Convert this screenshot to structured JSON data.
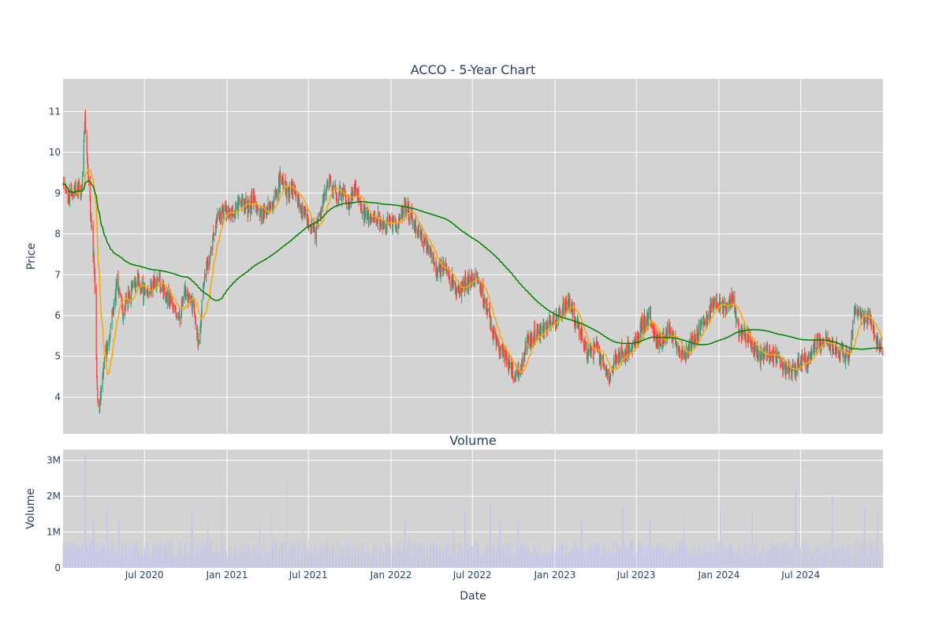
{
  "chart_data": [
    {
      "type": "candlestick",
      "title": "ACCO - 5-Year Chart",
      "ylabel": "Price",
      "xlabel": "",
      "x_range": [
        "2020-01-02",
        "2024-12-31"
      ],
      "ylim": [
        3.1,
        11.8
      ],
      "y_ticks": [
        4,
        5,
        6,
        7,
        8,
        9,
        10,
        11
      ],
      "grid": true,
      "colors": {
        "increasing": "#3d9970",
        "decreasing": "#ff4136",
        "ma_short": "#ffa500",
        "ma_long": "#008000",
        "background": "#d3d3d3"
      },
      "close_anchors": [
        [
          "2020-01-02",
          9.2
        ],
        [
          "2020-01-15",
          8.9
        ],
        [
          "2020-02-01",
          9.1
        ],
        [
          "2020-02-12",
          9.0
        ],
        [
          "2020-02-20",
          10.9
        ],
        [
          "2020-02-25",
          9.7
        ],
        [
          "2020-03-05",
          8.2
        ],
        [
          "2020-03-12",
          7.1
        ],
        [
          "2020-03-18",
          4.1
        ],
        [
          "2020-03-23",
          3.7
        ],
        [
          "2020-04-01",
          4.8
        ],
        [
          "2020-04-15",
          5.6
        ],
        [
          "2020-05-01",
          6.8
        ],
        [
          "2020-05-15",
          6.1
        ],
        [
          "2020-06-01",
          6.6
        ],
        [
          "2020-06-15",
          6.9
        ],
        [
          "2020-07-01",
          6.5
        ],
        [
          "2020-07-15",
          6.7
        ],
        [
          "2020-08-01",
          6.9
        ],
        [
          "2020-08-15",
          6.6
        ],
        [
          "2020-09-01",
          6.3
        ],
        [
          "2020-09-15",
          5.9
        ],
        [
          "2020-10-01",
          6.6
        ],
        [
          "2020-10-20",
          6.2
        ],
        [
          "2020-10-30",
          5.3
        ],
        [
          "2020-11-10",
          6.8
        ],
        [
          "2020-11-25",
          7.6
        ],
        [
          "2020-12-10",
          8.4
        ],
        [
          "2021-01-01",
          8.6
        ],
        [
          "2021-01-15",
          8.5
        ],
        [
          "2021-02-01",
          8.8
        ],
        [
          "2021-02-15",
          8.6
        ],
        [
          "2021-03-01",
          8.9
        ],
        [
          "2021-03-15",
          8.4
        ],
        [
          "2021-04-01",
          8.6
        ],
        [
          "2021-04-15",
          8.8
        ],
        [
          "2021-05-01",
          9.4
        ],
        [
          "2021-05-15",
          9.0
        ],
        [
          "2021-06-01",
          9.1
        ],
        [
          "2021-06-15",
          8.6
        ],
        [
          "2021-07-01",
          8.3
        ],
        [
          "2021-07-15",
          8.0
        ],
        [
          "2021-08-01",
          8.7
        ],
        [
          "2021-08-15",
          9.3
        ],
        [
          "2021-09-01",
          8.9
        ],
        [
          "2021-09-15",
          9.0
        ],
        [
          "2021-10-01",
          8.7
        ],
        [
          "2021-10-15",
          9.2
        ],
        [
          "2021-11-01",
          8.5
        ],
        [
          "2021-11-15",
          8.3
        ],
        [
          "2021-12-01",
          8.4
        ],
        [
          "2021-12-15",
          8.2
        ],
        [
          "2022-01-01",
          8.3
        ],
        [
          "2022-01-15",
          8.1
        ],
        [
          "2022-02-01",
          8.7
        ],
        [
          "2022-02-15",
          8.4
        ],
        [
          "2022-03-01",
          8.1
        ],
        [
          "2022-03-15",
          7.8
        ],
        [
          "2022-04-01",
          7.5
        ],
        [
          "2022-04-15",
          7.1
        ],
        [
          "2022-05-01",
          7.2
        ],
        [
          "2022-05-15",
          6.8
        ],
        [
          "2022-06-01",
          6.6
        ],
        [
          "2022-06-15",
          6.8
        ],
        [
          "2022-07-01",
          7.0
        ],
        [
          "2022-07-15",
          6.8
        ],
        [
          "2022-08-01",
          6.2
        ],
        [
          "2022-08-15",
          5.6
        ],
        [
          "2022-09-01",
          5.1
        ],
        [
          "2022-09-15",
          5.0
        ],
        [
          "2022-10-01",
          4.5
        ],
        [
          "2022-10-15",
          4.7
        ],
        [
          "2022-11-01",
          5.4
        ],
        [
          "2022-11-15",
          5.5
        ],
        [
          "2022-12-01",
          5.6
        ],
        [
          "2022-12-15",
          5.7
        ],
        [
          "2023-01-01",
          5.9
        ],
        [
          "2023-01-15",
          6.1
        ],
        [
          "2023-02-01",
          6.4
        ],
        [
          "2023-02-15",
          5.8
        ],
        [
          "2023-03-01",
          5.5
        ],
        [
          "2023-03-15",
          5.0
        ],
        [
          "2023-04-01",
          5.2
        ],
        [
          "2023-04-15",
          4.9
        ],
        [
          "2023-05-01",
          4.5
        ],
        [
          "2023-05-15",
          5.0
        ],
        [
          "2023-06-01",
          5.1
        ],
        [
          "2023-06-15",
          5.2
        ],
        [
          "2023-07-01",
          5.4
        ],
        [
          "2023-07-15",
          5.8
        ],
        [
          "2023-08-01",
          6.0
        ],
        [
          "2023-08-15",
          5.3
        ],
        [
          "2023-09-01",
          5.4
        ],
        [
          "2023-09-15",
          5.7
        ],
        [
          "2023-10-01",
          5.2
        ],
        [
          "2023-10-15",
          5.0
        ],
        [
          "2023-11-01",
          5.3
        ],
        [
          "2023-11-15",
          5.6
        ],
        [
          "2023-12-01",
          5.9
        ],
        [
          "2023-12-15",
          6.2
        ],
        [
          "2024-01-01",
          6.3
        ],
        [
          "2024-01-15",
          6.2
        ],
        [
          "2024-02-01",
          6.4
        ],
        [
          "2024-02-15",
          5.6
        ],
        [
          "2024-03-01",
          5.5
        ],
        [
          "2024-03-15",
          5.3
        ],
        [
          "2024-04-01",
          5.0
        ],
        [
          "2024-04-15",
          5.1
        ],
        [
          "2024-05-01",
          5.0
        ],
        [
          "2024-05-15",
          4.9
        ],
        [
          "2024-06-01",
          4.7
        ],
        [
          "2024-06-15",
          4.6
        ],
        [
          "2024-07-01",
          4.9
        ],
        [
          "2024-07-15",
          4.8
        ],
        [
          "2024-08-01",
          5.3
        ],
        [
          "2024-08-15",
          5.4
        ],
        [
          "2024-09-01",
          5.3
        ],
        [
          "2024-09-15",
          5.2
        ],
        [
          "2024-10-01",
          5.1
        ],
        [
          "2024-10-15",
          5.0
        ],
        [
          "2024-11-01",
          6.2
        ],
        [
          "2024-11-15",
          5.9
        ],
        [
          "2024-12-01",
          6.0
        ],
        [
          "2024-12-15",
          5.4
        ],
        [
          "2024-12-31",
          5.2
        ]
      ],
      "series": [
        {
          "name": "",
          "type": "moving_average",
          "window": 20,
          "color": "#ffa500"
        },
        {
          "name": "",
          "type": "moving_average",
          "window": 200,
          "color": "#008000"
        }
      ]
    },
    {
      "type": "bar",
      "title": "Volume",
      "xlabel": "Date",
      "ylabel": "Volume",
      "ylim": [
        0,
        3300000
      ],
      "y_ticks": [
        {
          "value": 0,
          "label": "0"
        },
        {
          "value": 1000000,
          "label": "1M"
        },
        {
          "value": 2000000,
          "label": "2M"
        },
        {
          "value": 3000000,
          "label": "3M"
        }
      ],
      "bar_color": "#c8c8e6",
      "spikes": [
        [
          "2020-02-20",
          3200000
        ],
        [
          "2020-03-10",
          1400000
        ],
        [
          "2020-04-10",
          1700000
        ],
        [
          "2020-05-05",
          1300000
        ],
        [
          "2020-10-15",
          1600000
        ],
        [
          "2020-11-20",
          1300000
        ],
        [
          "2020-12-20",
          2200000
        ],
        [
          "2021-03-15",
          1200000
        ],
        [
          "2021-04-10",
          1700000
        ],
        [
          "2021-05-15",
          2500000
        ],
        [
          "2021-06-20",
          1100000
        ],
        [
          "2022-02-01",
          1300000
        ],
        [
          "2022-05-20",
          1200000
        ],
        [
          "2022-06-15",
          1600000
        ],
        [
          "2022-08-10",
          1800000
        ],
        [
          "2022-09-01",
          1300000
        ],
        [
          "2022-10-10",
          1400000
        ],
        [
          "2023-03-01",
          1300000
        ],
        [
          "2023-06-01",
          1700000
        ],
        [
          "2023-08-01",
          1300000
        ],
        [
          "2023-10-15",
          1500000
        ],
        [
          "2024-01-05",
          1700000
        ],
        [
          "2024-03-15",
          1600000
        ],
        [
          "2024-06-20",
          2300000
        ],
        [
          "2024-09-10",
          2000000
        ],
        [
          "2024-11-20",
          1700000
        ],
        [
          "2024-12-20",
          1700000
        ]
      ],
      "x_ticks": [
        "2020-07-01",
        "2021-01-01",
        "2021-07-01",
        "2022-01-01",
        "2022-07-01",
        "2023-01-01",
        "2023-07-01",
        "2024-01-01",
        "2024-07-01"
      ],
      "x_tick_labels": [
        "Jul 2020",
        "Jan 2021",
        "Jul 2021",
        "Jan 2022",
        "Jul 2022",
        "Jan 2023",
        "Jul 2023",
        "Jan 2024",
        "Jul 2024"
      ]
    }
  ]
}
